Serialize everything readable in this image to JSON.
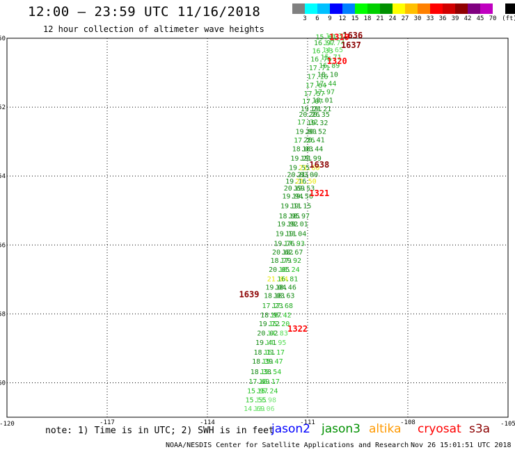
{
  "header": {
    "title": "12:00 – 23:59 UTC 11/16/2018",
    "subtitle": "12 hour collection of altimeter wave heights"
  },
  "color_scale": {
    "colors": [
      "#808080",
      "#00ffff",
      "#00c0ff",
      "#0000ff",
      "#0080ff",
      "#00ff00",
      "#00d000",
      "#009000",
      "#ffff00",
      "#ffc000",
      "#ff8000",
      "#ff0000",
      "#d00000",
      "#900000",
      "#800080",
      "#c000c0",
      "#ffffff",
      "#000000"
    ],
    "labels": [
      "3",
      "6",
      "9",
      "12",
      "15",
      "18",
      "21",
      "24",
      "27",
      "30",
      "33",
      "36",
      "39",
      "42",
      "45",
      "70",
      "(ft)"
    ]
  },
  "map": {
    "x_axis": {
      "ticks": [
        "-120",
        "-117",
        "-114",
        "-111",
        "-108",
        "-105"
      ]
    },
    "y_axis": {
      "ticks": [
        "-50",
        "-52",
        "-54",
        "-56",
        "-58",
        "-60"
      ]
    },
    "tracks": [
      {
        "name": "left-track",
        "points": [
          {
            "lon": -110.45,
            "lat": -50.03,
            "value": "15.61",
            "color": "#22c322"
          },
          {
            "lon": -110.5,
            "lat": -50.2,
            "value": "16.97",
            "color": "#1ea81e"
          },
          {
            "lon": -110.55,
            "lat": -50.43,
            "value": "16.33",
            "color": "#22c322"
          },
          {
            "lon": -110.6,
            "lat": -50.68,
            "value": "16.76",
            "color": "#1ea81e"
          },
          {
            "lon": -110.65,
            "lat": -50.93,
            "value": "17.71",
            "color": "#1ea81e"
          },
          {
            "lon": -110.7,
            "lat": -51.18,
            "value": "17.16",
            "color": "#1ea81e"
          },
          {
            "lon": -110.75,
            "lat": -51.43,
            "value": "17.64",
            "color": "#1ea81e"
          },
          {
            "lon": -110.8,
            "lat": -51.68,
            "value": "17.57",
            "color": "#1ea81e"
          },
          {
            "lon": -110.85,
            "lat": -51.9,
            "value": "17.07",
            "color": "#1ea81e"
          },
          {
            "lon": -110.9,
            "lat": -52.12,
            "value": "19.21",
            "color": "#138a13"
          },
          {
            "lon": -110.95,
            "lat": -52.28,
            "value": "20.26",
            "color": "#138a13"
          },
          {
            "lon": -111.0,
            "lat": -52.5,
            "value": "17.32",
            "color": "#1ea81e"
          },
          {
            "lon": -111.05,
            "lat": -52.78,
            "value": "19.80",
            "color": "#138a13"
          },
          {
            "lon": -111.1,
            "lat": -53.03,
            "value": "17.26",
            "color": "#1ea81e"
          },
          {
            "lon": -111.15,
            "lat": -53.28,
            "value": "18.03",
            "color": "#138a13"
          },
          {
            "lon": -111.2,
            "lat": -53.55,
            "value": "19.21",
            "color": "#138a13"
          },
          {
            "lon": -111.25,
            "lat": -53.82,
            "value": "19.55",
            "color": "#138a13"
          },
          {
            "lon": -111.3,
            "lat": -54.03,
            "value": "20.83",
            "color": "#138a13"
          },
          {
            "lon": -111.35,
            "lat": -54.22,
            "value": "19.16",
            "color": "#138a13"
          },
          {
            "lon": -111.4,
            "lat": -54.42,
            "value": "20.69",
            "color": "#138a13"
          },
          {
            "lon": -111.45,
            "lat": -54.65,
            "value": "19.94",
            "color": "#138a13"
          },
          {
            "lon": -111.5,
            "lat": -54.93,
            "value": "19.11",
            "color": "#138a13"
          },
          {
            "lon": -111.55,
            "lat": -55.23,
            "value": "18.95",
            "color": "#138a13"
          },
          {
            "lon": -111.6,
            "lat": -55.46,
            "value": "19.92",
            "color": "#138a13"
          },
          {
            "lon": -111.65,
            "lat": -55.74,
            "value": "19.11",
            "color": "#138a13"
          },
          {
            "lon": -111.7,
            "lat": -56.02,
            "value": "19.76",
            "color": "#138a13"
          },
          {
            "lon": -111.75,
            "lat": -56.28,
            "value": "20.62",
            "color": "#138a13"
          },
          {
            "lon": -111.8,
            "lat": -56.52,
            "value": "18.79",
            "color": "#138a13"
          },
          {
            "lon": -111.85,
            "lat": -56.78,
            "value": "20.05",
            "color": "#138a13"
          },
          {
            "lon": -111.9,
            "lat": -57.05,
            "value": "21.84",
            "color": "#e8e800"
          },
          {
            "lon": -111.95,
            "lat": -57.3,
            "value": "19.04",
            "color": "#138a13"
          },
          {
            "lon": -112.0,
            "lat": -57.54,
            "value": "18.03",
            "color": "#138a13"
          },
          {
            "lon": -112.05,
            "lat": -57.83,
            "value": "17.23",
            "color": "#1ea81e"
          },
          {
            "lon": -112.1,
            "lat": -58.1,
            "value": "18.97",
            "color": "#138a13"
          },
          {
            "lon": -112.15,
            "lat": -58.36,
            "value": "19.72",
            "color": "#138a13"
          },
          {
            "lon": -112.2,
            "lat": -58.63,
            "value": "20.02",
            "color": "#138a13"
          },
          {
            "lon": -112.25,
            "lat": -58.9,
            "value": "19.41",
            "color": "#138a13"
          },
          {
            "lon": -112.3,
            "lat": -59.18,
            "value": "18.11",
            "color": "#138a13"
          },
          {
            "lon": -112.35,
            "lat": -59.45,
            "value": "18.39",
            "color": "#138a13"
          },
          {
            "lon": -112.4,
            "lat": -59.75,
            "value": "18.38",
            "color": "#138a13"
          },
          {
            "lon": -112.45,
            "lat": -60.03,
            "value": "17.69",
            "color": "#1ea81e"
          },
          {
            "lon": -112.5,
            "lat": -60.3,
            "value": "15.97",
            "color": "#22c322"
          },
          {
            "lon": -112.55,
            "lat": -60.57,
            "value": "15.55",
            "color": "#22c322"
          },
          {
            "lon": -112.6,
            "lat": -60.82,
            "value": "14.69",
            "color": "#55dd55"
          }
        ]
      },
      {
        "name": "right-track",
        "points": [
          {
            "lon": -110.15,
            "lat": -50.0,
            "value": "14.32",
            "color": "#55dd55"
          },
          {
            "lon": -110.2,
            "lat": -50.2,
            "value": "14.74",
            "color": "#55dd55"
          },
          {
            "lon": -110.25,
            "lat": -50.4,
            "value": "14.65",
            "color": "#55dd55"
          },
          {
            "lon": -110.3,
            "lat": -50.62,
            "value": "15.71",
            "color": "#22c322"
          },
          {
            "lon": -110.35,
            "lat": -50.86,
            "value": "16.89",
            "color": "#1ea81e"
          },
          {
            "lon": -110.4,
            "lat": -51.12,
            "value": "18.10",
            "color": "#138a13"
          },
          {
            "lon": -110.45,
            "lat": -51.38,
            "value": "17.44",
            "color": "#1ea81e"
          },
          {
            "lon": -110.5,
            "lat": -51.62,
            "value": "17.97",
            "color": "#1ea81e"
          },
          {
            "lon": -110.55,
            "lat": -51.87,
            "value": "18.01",
            "color": "#138a13"
          },
          {
            "lon": -110.6,
            "lat": -52.12,
            "value": "19.21",
            "color": "#138a13"
          },
          {
            "lon": -110.65,
            "lat": -52.28,
            "value": "20.35",
            "color": "#138a13"
          },
          {
            "lon": -110.7,
            "lat": -52.52,
            "value": "19.32",
            "color": "#138a13"
          },
          {
            "lon": -110.75,
            "lat": -52.78,
            "value": "20.52",
            "color": "#138a13"
          },
          {
            "lon": -110.8,
            "lat": -53.02,
            "value": "20.41",
            "color": "#138a13"
          },
          {
            "lon": -110.85,
            "lat": -53.28,
            "value": "18.44",
            "color": "#138a13"
          },
          {
            "lon": -110.9,
            "lat": -53.55,
            "value": "19.99",
            "color": "#138a13"
          },
          {
            "lon": -110.95,
            "lat": -53.82,
            "value": "21.60",
            "color": "#e8e800"
          },
          {
            "lon": -111.0,
            "lat": -54.03,
            "value": "21.00",
            "color": "#138a13"
          },
          {
            "lon": -111.05,
            "lat": -54.22,
            "value": "21.50",
            "color": "#e8e800"
          },
          {
            "lon": -111.1,
            "lat": -54.42,
            "value": "19.53",
            "color": "#138a13"
          },
          {
            "lon": -111.15,
            "lat": -54.65,
            "value": "19.56",
            "color": "#138a13"
          },
          {
            "lon": -111.2,
            "lat": -54.93,
            "value": "19.15",
            "color": "#138a13"
          },
          {
            "lon": -111.25,
            "lat": -55.23,
            "value": "18.97",
            "color": "#138a13"
          },
          {
            "lon": -111.3,
            "lat": -55.46,
            "value": "19.01",
            "color": "#138a13"
          },
          {
            "lon": -111.35,
            "lat": -55.74,
            "value": "19.04",
            "color": "#138a13"
          },
          {
            "lon": -111.4,
            "lat": -56.02,
            "value": "17.93",
            "color": "#1ea81e"
          },
          {
            "lon": -111.45,
            "lat": -56.28,
            "value": "18.67",
            "color": "#138a13"
          },
          {
            "lon": -111.5,
            "lat": -56.52,
            "value": "17.92",
            "color": "#1ea81e"
          },
          {
            "lon": -111.55,
            "lat": -56.78,
            "value": "16.24",
            "color": "#22c322"
          },
          {
            "lon": -111.6,
            "lat": -57.05,
            "value": "16.81",
            "color": "#1ea81e"
          },
          {
            "lon": -111.65,
            "lat": -57.3,
            "value": "18.46",
            "color": "#138a13"
          },
          {
            "lon": -111.7,
            "lat": -57.54,
            "value": "18.63",
            "color": "#138a13"
          },
          {
            "lon": -111.75,
            "lat": -57.83,
            "value": "17.68",
            "color": "#1ea81e"
          },
          {
            "lon": -111.8,
            "lat": -58.1,
            "value": "16.42",
            "color": "#22c322"
          },
          {
            "lon": -111.85,
            "lat": -58.36,
            "value": "15.20",
            "color": "#22c322"
          },
          {
            "lon": -111.9,
            "lat": -58.63,
            "value": "14.83",
            "color": "#55dd55"
          },
          {
            "lon": -111.95,
            "lat": -58.9,
            "value": "14.95",
            "color": "#55dd55"
          },
          {
            "lon": -112.0,
            "lat": -59.18,
            "value": "16.17",
            "color": "#22c322"
          },
          {
            "lon": -112.05,
            "lat": -59.45,
            "value": "15.47",
            "color": "#22c322"
          },
          {
            "lon": -112.1,
            "lat": -59.75,
            "value": "15.54",
            "color": "#22c322"
          },
          {
            "lon": -112.15,
            "lat": -60.03,
            "value": "16.17",
            "color": "#22c322"
          },
          {
            "lon": -112.2,
            "lat": -60.3,
            "value": "15.24",
            "color": "#22c322"
          },
          {
            "lon": -112.25,
            "lat": -60.57,
            "value": "13.98",
            "color": "#77e677"
          },
          {
            "lon": -112.3,
            "lat": -60.82,
            "value": "13.06",
            "color": "#77e677"
          }
        ]
      }
    ],
    "pass_labels": [
      {
        "lon": -109.65,
        "lat": -50.0,
        "value": "1636",
        "color": "#8b0000"
      },
      {
        "lon": -110.05,
        "lat": -50.05,
        "value": "1319",
        "color": "#ff0000"
      },
      {
        "lon": -109.7,
        "lat": -50.28,
        "value": "1637",
        "color": "#8b0000"
      },
      {
        "lon": -110.12,
        "lat": -50.75,
        "value": "1320",
        "color": "#ff0000"
      },
      {
        "lon": -110.65,
        "lat": -53.75,
        "value": "1638",
        "color": "#8b0000"
      },
      {
        "lon": -110.65,
        "lat": -54.58,
        "value": "1321",
        "color": "#ff0000"
      },
      {
        "lon": -112.75,
        "lat": -57.52,
        "value": "1639",
        "color": "#8b0000"
      },
      {
        "lon": -111.3,
        "lat": -58.52,
        "value": "1322",
        "color": "#ff0000"
      }
    ]
  },
  "footer": {
    "note": "note: 1) Time is in UTC; 2) SWH is in feet",
    "satellites": [
      {
        "name": "jason2",
        "color": "#0000ff"
      },
      {
        "name": "jason3",
        "color": "#009000"
      },
      {
        "name": "altika",
        "color": "#ff9900"
      },
      {
        "name": "cryosat",
        "color": "#ff0000"
      },
      {
        "name": "s3a",
        "color": "#8b0000"
      }
    ],
    "credit": "NOAA/NESDIS Center for Satellite Applications and Research",
    "generated": "Nov 26 15:01:51 UTC 2018"
  }
}
